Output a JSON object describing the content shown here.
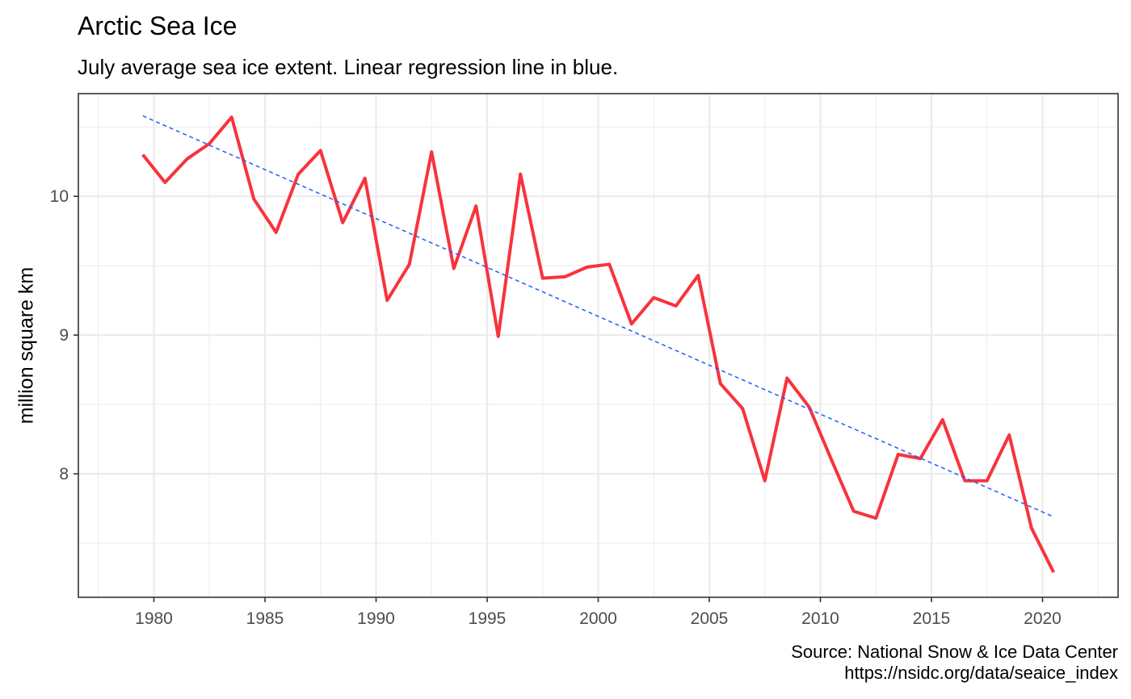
{
  "chart_data": {
    "type": "line",
    "title": "Arctic Sea Ice",
    "subtitle": "July average sea ice extent. Linear regression line in blue.",
    "xlabel": "",
    "ylabel": "million square km",
    "caption": [
      "Source: National Snow & Ice Data Center",
      "https://nsidc.org/data/seaice_index"
    ],
    "xlim": [
      1976.6,
      2023.4
    ],
    "ylim": [
      7.11,
      10.74
    ],
    "x_ticks": [
      "1980",
      "1985",
      "1990",
      "1995",
      "2000",
      "2005",
      "2010",
      "2015",
      "2020"
    ],
    "y_ticks": [
      "8",
      "9",
      "10"
    ],
    "grid": true,
    "legend": "none",
    "series": [
      {
        "color": "#f8333c",
        "style": "solid",
        "x": [
          "1979-07",
          "1980-07",
          "1981-07",
          "1982-07",
          "1983-07",
          "1984-07",
          "1985-07",
          "1986-07",
          "1987-07",
          "1988-07",
          "1989-07",
          "1990-07",
          "1991-07",
          "1992-07",
          "1993-07",
          "1994-07",
          "1995-07",
          "1996-07",
          "1997-07",
          "1998-07",
          "1999-07",
          "2000-07",
          "2001-07",
          "2002-07",
          "2003-07",
          "2004-07",
          "2005-07",
          "2006-07",
          "2007-07",
          "2008-07",
          "2009-07",
          "2010-07",
          "2011-07",
          "2012-07",
          "2013-07",
          "2014-07",
          "2015-07",
          "2016-07",
          "2017-07",
          "2018-07",
          "2019-07",
          "2020-07"
        ],
        "values": [
          10.3,
          10.1,
          10.27,
          10.38,
          10.57,
          9.98,
          9.74,
          10.16,
          10.33,
          9.81,
          10.13,
          9.25,
          9.51,
          10.32,
          9.48,
          9.93,
          8.99,
          10.16,
          9.41,
          9.42,
          9.49,
          9.51,
          9.08,
          9.27,
          9.21,
          9.43,
          8.65,
          8.47,
          7.95,
          8.69,
          8.48,
          8.1,
          7.73,
          7.68,
          8.14,
          8.11,
          8.39,
          7.95,
          7.95,
          8.28,
          7.61,
          7.29
        ]
      },
      {
        "color": "#1f5cff",
        "style": "dashed",
        "x": [
          "1979-07",
          "2020-07"
        ],
        "values": [
          10.58,
          7.69
        ]
      }
    ]
  }
}
